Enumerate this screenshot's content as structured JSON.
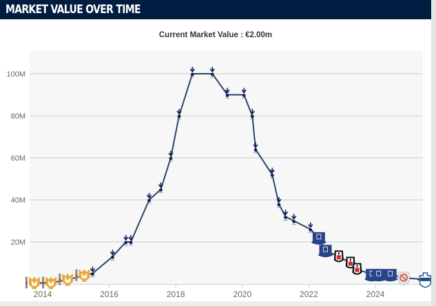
{
  "header": {
    "title": "MARKET VALUE OVER TIME"
  },
  "subtitle": "Current Market Value : €2.00m",
  "colors": {
    "header_bg": "#001c40",
    "line": "#2a4466",
    "plot_bg": "#f7f7f7",
    "grid": "#d8d8d8",
    "spurs": "#132257",
    "mk_dons": "#e8a83a",
    "everton": "#274488",
    "besiktas": "#111111",
    "besiktas_red": "#d8232a",
    "como": "#1e4f82",
    "no_club": "#d9534f"
  },
  "chart_data": {
    "type": "line",
    "title": "Current Market Value : €2.00m",
    "xlabel": "",
    "ylabel": "",
    "xlim": [
      2013.75,
      2025.5
    ],
    "ylim": [
      0,
      110
    ],
    "grid": true,
    "y_ticks": [
      {
        "value": 20,
        "label": "20M"
      },
      {
        "value": 40,
        "label": "40M"
      },
      {
        "value": 60,
        "label": "60M"
      },
      {
        "value": 80,
        "label": "80M"
      },
      {
        "value": 100,
        "label": "100M"
      }
    ],
    "x_ticks": [
      {
        "value": 2014,
        "label": "2014"
      },
      {
        "value": 2016,
        "label": "2016"
      },
      {
        "value": 2018,
        "label": "2018"
      },
      {
        "value": 2020,
        "label": "2020"
      },
      {
        "value": 2022,
        "label": "2022"
      },
      {
        "value": 2024,
        "label": "2024"
      }
    ],
    "series": [
      {
        "name": "Market value",
        "points": [
          {
            "x": 2013.75,
            "y": 0.5,
            "club": "mk_dons"
          },
          {
            "x": 2014.25,
            "y": 0.5,
            "club": "mk_dons"
          },
          {
            "x": 2014.75,
            "y": 2,
            "club": "mk_dons"
          },
          {
            "x": 2015.25,
            "y": 4,
            "club": "mk_dons"
          },
          {
            "x": 2015.5,
            "y": 5,
            "club": "spurs"
          },
          {
            "x": 2016.1,
            "y": 13,
            "club": "spurs"
          },
          {
            "x": 2016.5,
            "y": 20,
            "club": "spurs"
          },
          {
            "x": 2016.65,
            "y": 20,
            "club": "spurs"
          },
          {
            "x": 2017.2,
            "y": 40,
            "club": "spurs"
          },
          {
            "x": 2017.55,
            "y": 45,
            "club": "spurs"
          },
          {
            "x": 2017.85,
            "y": 60,
            "club": "spurs"
          },
          {
            "x": 2018.1,
            "y": 80,
            "club": "spurs"
          },
          {
            "x": 2018.5,
            "y": 100,
            "club": "spurs"
          },
          {
            "x": 2019.1,
            "y": 100,
            "club": "spurs"
          },
          {
            "x": 2019.55,
            "y": 90,
            "club": "spurs"
          },
          {
            "x": 2020.05,
            "y": 90,
            "club": "spurs"
          },
          {
            "x": 2020.3,
            "y": 80,
            "club": "spurs"
          },
          {
            "x": 2020.4,
            "y": 64,
            "club": "spurs"
          },
          {
            "x": 2020.9,
            "y": 52,
            "club": "spurs"
          },
          {
            "x": 2021.1,
            "y": 38,
            "club": "spurs"
          },
          {
            "x": 2021.3,
            "y": 32,
            "club": "spurs"
          },
          {
            "x": 2021.55,
            "y": 30,
            "club": "spurs"
          },
          {
            "x": 2022.05,
            "y": 26,
            "club": "spurs"
          },
          {
            "x": 2022.3,
            "y": 22,
            "club": "everton"
          },
          {
            "x": 2022.5,
            "y": 16,
            "club": "everton"
          },
          {
            "x": 2022.9,
            "y": 13,
            "club": "besiktas"
          },
          {
            "x": 2023.25,
            "y": 10,
            "club": "besiktas"
          },
          {
            "x": 2023.45,
            "y": 7,
            "club": "besiktas"
          },
          {
            "x": 2023.9,
            "y": 4.5,
            "club": "everton"
          },
          {
            "x": 2024.1,
            "y": 4.5,
            "club": "everton"
          },
          {
            "x": 2024.45,
            "y": 4.5,
            "club": "everton"
          },
          {
            "x": 2024.85,
            "y": 3,
            "club": "without_club"
          },
          {
            "x": 2025.5,
            "y": 2,
            "club": "como"
          }
        ]
      }
    ]
  }
}
